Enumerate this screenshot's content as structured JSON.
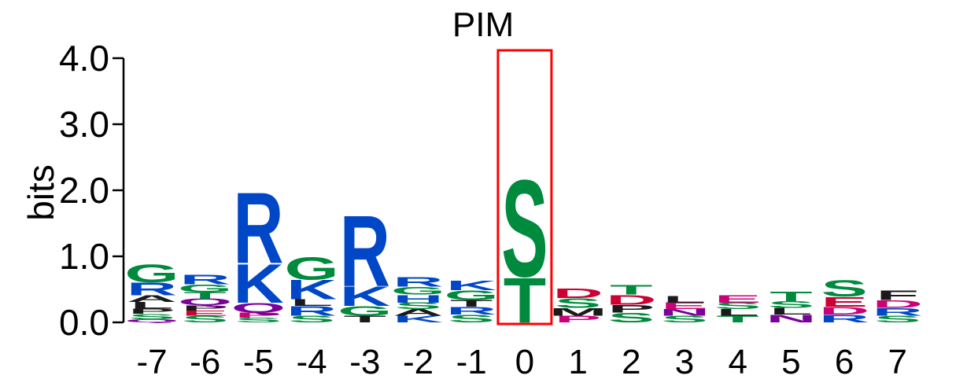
{
  "chart_data": {
    "type": "sequence-logo",
    "title": "PIM",
    "ylabel": "bits",
    "ylim": [
      0,
      4
    ],
    "yticks": [
      "0.0",
      "1.0",
      "2.0",
      "3.0",
      "4.0"
    ],
    "ytick_values": [
      0,
      1,
      2,
      3,
      4
    ],
    "positions": [
      "-7",
      "-6",
      "-5",
      "-4",
      "-3",
      "-2",
      "-1",
      "0",
      "1",
      "2",
      "3",
      "4",
      "5",
      "6",
      "7"
    ],
    "highlight_position": "0",
    "highlight_color": "#ff0000",
    "residue_colors": {
      "acidic": "#cc0033",
      "basic": "#0047c8",
      "polar": "#008a3d",
      "hydrophobic": "#1a1a1a",
      "amide": "#7a0099",
      "other": "#cc0077"
    },
    "stacks": [
      {
        "position": "-7",
        "letters": [
          {
            "char": "Q",
            "bits": 0.05,
            "class": "amide"
          },
          {
            "char": "S",
            "bits": 0.08,
            "class": "polar"
          },
          {
            "char": "P",
            "bits": 0.08,
            "class": "hydrophobic"
          },
          {
            "char": "L",
            "bits": 0.1,
            "class": "hydrophobic"
          },
          {
            "char": "A",
            "bits": 0.1,
            "class": "hydrophobic"
          },
          {
            "char": "R",
            "bits": 0.2,
            "class": "basic"
          },
          {
            "char": "G",
            "bits": 0.28,
            "class": "polar"
          }
        ]
      },
      {
        "position": "-6",
        "letters": [
          {
            "char": "S",
            "bits": 0.1,
            "class": "polar"
          },
          {
            "char": "E",
            "bits": 0.08,
            "class": "acidic"
          },
          {
            "char": "P",
            "bits": 0.08,
            "class": "hydrophobic"
          },
          {
            "char": "Q",
            "bits": 0.1,
            "class": "amide"
          },
          {
            "char": "T",
            "bits": 0.1,
            "class": "polar"
          },
          {
            "char": "G",
            "bits": 0.12,
            "class": "polar"
          },
          {
            "char": "R",
            "bits": 0.15,
            "class": "basic"
          }
        ]
      },
      {
        "position": "-5",
        "letters": [
          {
            "char": "S",
            "bits": 0.07,
            "class": "polar"
          },
          {
            "char": "P",
            "bits": 0.08,
            "class": "other"
          },
          {
            "char": "Q",
            "bits": 0.15,
            "class": "amide"
          },
          {
            "char": "K",
            "bits": 0.6,
            "class": "basic"
          },
          {
            "char": "R",
            "bits": 1.1,
            "class": "basic"
          }
        ]
      },
      {
        "position": "-4",
        "letters": [
          {
            "char": "S",
            "bits": 0.1,
            "class": "polar"
          },
          {
            "char": "R",
            "bits": 0.15,
            "class": "basic"
          },
          {
            "char": "L",
            "bits": 0.1,
            "class": "hydrophobic"
          },
          {
            "char": "K",
            "bits": 0.3,
            "class": "basic"
          },
          {
            "char": "G",
            "bits": 0.35,
            "class": "polar"
          }
        ]
      },
      {
        "position": "-3",
        "letters": [
          {
            "char": "T",
            "bits": 0.1,
            "class": "hydrophobic"
          },
          {
            "char": "G",
            "bits": 0.15,
            "class": "polar"
          },
          {
            "char": "K",
            "bits": 0.3,
            "class": "basic"
          },
          {
            "char": "R",
            "bits": 1.1,
            "class": "basic"
          }
        ]
      },
      {
        "position": "-2",
        "letters": [
          {
            "char": "K",
            "bits": 0.1,
            "class": "basic"
          },
          {
            "char": "A",
            "bits": 0.1,
            "class": "hydrophobic"
          },
          {
            "char": "S",
            "bits": 0.1,
            "class": "polar"
          },
          {
            "char": "H",
            "bits": 0.12,
            "class": "basic"
          },
          {
            "char": "G",
            "bits": 0.12,
            "class": "polar"
          },
          {
            "char": "R",
            "bits": 0.15,
            "class": "basic"
          }
        ]
      },
      {
        "position": "-1",
        "letters": [
          {
            "char": "S",
            "bits": 0.12,
            "class": "polar"
          },
          {
            "char": "R",
            "bits": 0.12,
            "class": "basic"
          },
          {
            "char": "T",
            "bits": 0.1,
            "class": "hydrophobic"
          },
          {
            "char": "G",
            "bits": 0.15,
            "class": "polar"
          },
          {
            "char": "K",
            "bits": 0.15,
            "class": "basic"
          }
        ]
      },
      {
        "position": "0",
        "letters": [
          {
            "char": "T",
            "bits": 0.7,
            "class": "polar"
          },
          {
            "char": "S",
            "bits": 1.5,
            "class": "polar"
          }
        ]
      },
      {
        "position": "1",
        "letters": [
          {
            "char": "P",
            "bits": 0.1,
            "class": "other"
          },
          {
            "char": "M",
            "bits": 0.12,
            "class": "hydrophobic"
          },
          {
            "char": "S",
            "bits": 0.15,
            "class": "polar"
          },
          {
            "char": "D",
            "bits": 0.15,
            "class": "acidic"
          }
        ]
      },
      {
        "position": "2",
        "letters": [
          {
            "char": "S",
            "bits": 0.15,
            "class": "polar"
          },
          {
            "char": "P",
            "bits": 0.12,
            "class": "hydrophobic"
          },
          {
            "char": "D",
            "bits": 0.15,
            "class": "acidic"
          },
          {
            "char": "T",
            "bits": 0.15,
            "class": "polar"
          }
        ]
      },
      {
        "position": "3",
        "letters": [
          {
            "char": "S",
            "bits": 0.1,
            "class": "polar"
          },
          {
            "char": "N",
            "bits": 0.1,
            "class": "amide"
          },
          {
            "char": "E",
            "bits": 0.1,
            "class": "other"
          },
          {
            "char": "L",
            "bits": 0.1,
            "class": "hydrophobic"
          }
        ]
      },
      {
        "position": "4",
        "letters": [
          {
            "char": "T",
            "bits": 0.1,
            "class": "polar"
          },
          {
            "char": "L",
            "bits": 0.1,
            "class": "hydrophobic"
          },
          {
            "char": "S",
            "bits": 0.1,
            "class": "polar"
          },
          {
            "char": "E",
            "bits": 0.12,
            "class": "other"
          }
        ]
      },
      {
        "position": "5",
        "letters": [
          {
            "char": "N",
            "bits": 0.12,
            "class": "amide"
          },
          {
            "char": "L",
            "bits": 0.1,
            "class": "hydrophobic"
          },
          {
            "char": "S",
            "bits": 0.1,
            "class": "polar"
          },
          {
            "char": "T",
            "bits": 0.15,
            "class": "polar"
          }
        ]
      },
      {
        "position": "6",
        "letters": [
          {
            "char": "R",
            "bits": 0.12,
            "class": "basic"
          },
          {
            "char": "D",
            "bits": 0.12,
            "class": "other"
          },
          {
            "char": "E",
            "bits": 0.15,
            "class": "acidic"
          },
          {
            "char": "S",
            "bits": 0.25,
            "class": "polar"
          }
        ]
      },
      {
        "position": "7",
        "letters": [
          {
            "char": "S",
            "bits": 0.1,
            "class": "polar"
          },
          {
            "char": "R",
            "bits": 0.12,
            "class": "basic"
          },
          {
            "char": "D",
            "bits": 0.12,
            "class": "other"
          },
          {
            "char": "F",
            "bits": 0.15,
            "class": "hydrophobic"
          }
        ]
      }
    ]
  }
}
